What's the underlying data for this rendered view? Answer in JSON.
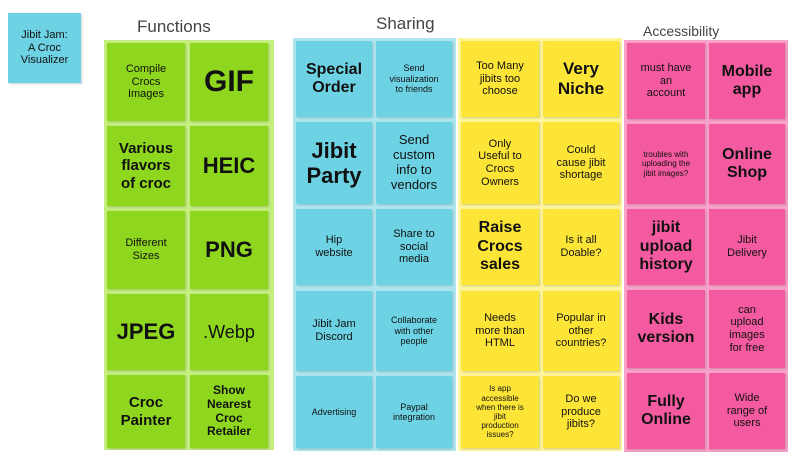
{
  "title_note": "Jibit Jam:\nA Croc\nVisualizer",
  "headings": {
    "functions": "Functions",
    "sharing": "Sharing",
    "accessibility": "Accessibility"
  },
  "functions": [
    "Compile\nCrocs\nImages",
    "GIF",
    "Various\nflavors\nof croc",
    "HEIC",
    "Different\nSizes",
    "PNG",
    "JPEG",
    ".Webp",
    "Croc\nPainter",
    "Show\nNearest\nCroc\nRetailer"
  ],
  "sharing_blue": [
    "Special\nOrder",
    "Send\nvisualization\nto friends",
    "Jibit\nParty",
    "Send\ncustom\ninfo to\nvendors",
    "Hip\nwebsite",
    "Share to\nsocial\nmedia",
    "Jibit Jam\nDiscord",
    "Collaborate\nwith other\npeople",
    "Advertising",
    "Paypal\nintegration"
  ],
  "sharing_yellow": [
    "Too Many\njibits too\nchoose",
    "Very\nNiche",
    "Only\nUseful to\nCrocs\nOwners",
    "Could\ncause jibit\nshortage",
    "Raise\nCrocs\nsales",
    "Is it all\nDoable?",
    "Needs\nmore than\nHTML",
    "Popular in\nother\ncountries?",
    "Is app\naccessible\nwhen there is\njibit\nproduction\nissues?",
    "Do we\nproduce\njibits?"
  ],
  "accessibility": [
    "must have\nan\naccount",
    "Mobile\napp",
    "troubles with\nuploading the\njibit images?",
    "Online\nShop",
    "jibit\nupload\nhistory",
    "Jibit\nDelivery",
    "Kids\nversion",
    "can\nupload\nimages\nfor free",
    "Fully\nOnline",
    "Wide\nrange of\nusers"
  ],
  "colors": {
    "green": "#8fd71f",
    "blue": "#6dd2e3",
    "yellow": "#fde538",
    "pink": "#f45a9f",
    "green_bg": "#c4ee7e",
    "blue_bg": "#aee6ef",
    "yellow_bg": "#fff59c",
    "pink_bg": "#f9a3ca"
  }
}
